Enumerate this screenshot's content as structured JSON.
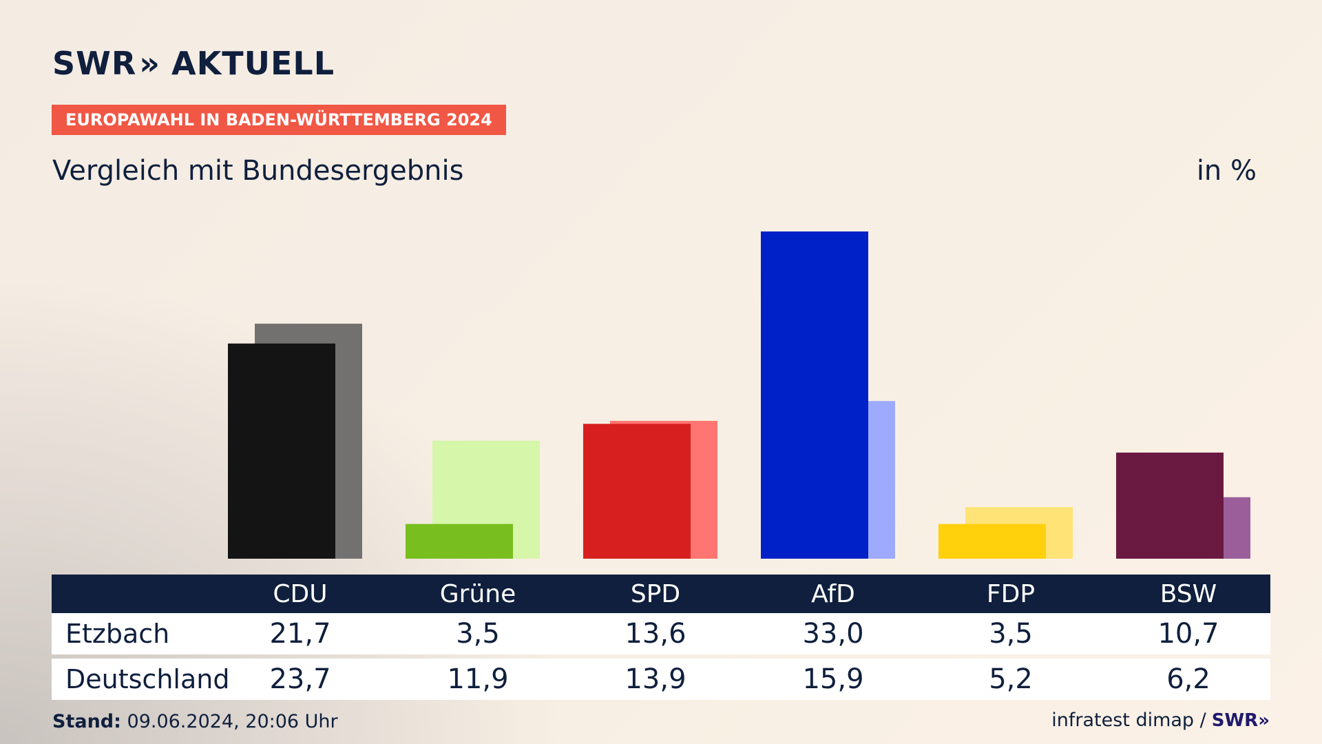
{
  "brand": {
    "logo_text": "SWR",
    "logo_chevrons": "»",
    "logo_suffix": "AKTUELL"
  },
  "tag_label": "EUROPAWAHL IN BADEN-WÜRTTEMBERG 2024",
  "subtitle": "Vergleich mit Bundesergebnis",
  "unit_label": "in %",
  "chart_data": {
    "type": "bar",
    "categories": [
      "CDU",
      "Grüne",
      "SPD",
      "AfD",
      "FDP",
      "BSW"
    ],
    "series": [
      {
        "name": "Etzbach",
        "values": [
          21.7,
          3.5,
          13.6,
          33.0,
          3.5,
          10.7
        ],
        "labels": [
          "21,7",
          "3,5",
          "13,6",
          "33,0",
          "3,5",
          "10,7"
        ]
      },
      {
        "name": "Deutschland",
        "values": [
          23.7,
          11.9,
          13.9,
          15.9,
          5.2,
          6.2
        ],
        "labels": [
          "23,7",
          "11,9",
          "13,9",
          "15,9",
          "5,2",
          "6,2"
        ]
      }
    ],
    "colors": {
      "primary": [
        "#141414",
        "#78be1e",
        "#d71f1f",
        "#0020c8",
        "#ffd00b",
        "#6a1a40"
      ],
      "secondary": [
        "#737170",
        "#d6f6aa",
        "#ff7571",
        "#9eaafd",
        "#ffe376",
        "#9b5e9b"
      ]
    },
    "ylim": [
      0,
      33.0
    ],
    "grid": false,
    "legend": "table-bottom"
  },
  "footer": {
    "stand_label": "Stand:",
    "stand_value": "09.06.2024, 20:06 Uhr",
    "source": "infratest dimap /",
    "source_logo": "SWR»"
  }
}
